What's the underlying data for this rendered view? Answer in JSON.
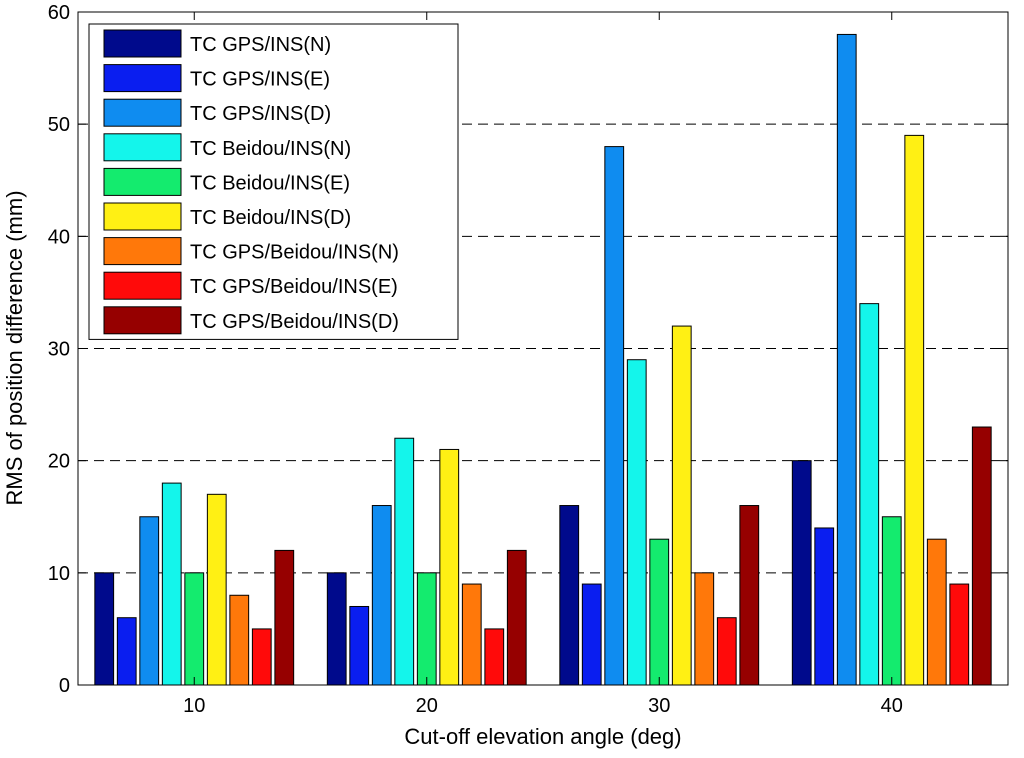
{
  "chart_data": {
    "type": "bar",
    "title": "",
    "xlabel": "Cut-off elevation angle (deg)",
    "ylabel": "RMS of position difference (mm)",
    "ylim": [
      0,
      60
    ],
    "yticks": [
      0,
      10,
      20,
      30,
      40,
      50,
      60
    ],
    "grid": "horizontal dashed",
    "legend_position": "top-left",
    "categories": [
      "10",
      "20",
      "30",
      "40"
    ],
    "series": [
      {
        "name": "TC GPS/INS(N)",
        "color": "#000a8c",
        "values": [
          10,
          10,
          16,
          20
        ]
      },
      {
        "name": "TC GPS/INS(E)",
        "color": "#0a1ef0",
        "values": [
          6,
          7,
          9,
          14
        ]
      },
      {
        "name": "TC GPS/INS(D)",
        "color": "#0f8cf0",
        "values": [
          15,
          16,
          48,
          58
        ]
      },
      {
        "name": "TC Beidou/INS(N)",
        "color": "#14f5eb",
        "values": [
          18,
          22,
          29,
          34
        ]
      },
      {
        "name": "TC Beidou/INS(E)",
        "color": "#14eb6e",
        "values": [
          10,
          10,
          13,
          15
        ]
      },
      {
        "name": "TC Beidou/INS(D)",
        "color": "#fff014",
        "values": [
          17,
          21,
          32,
          49
        ]
      },
      {
        "name": "TC GPS/Beidou/INS(N)",
        "color": "#ff780a",
        "values": [
          8,
          9,
          10,
          13
        ]
      },
      {
        "name": "TC GPS/Beidou/INS(E)",
        "color": "#ff0a0a",
        "values": [
          5,
          5,
          6,
          9
        ]
      },
      {
        "name": "TC GPS/Beidou/INS(D)",
        "color": "#960000",
        "values": [
          12,
          12,
          16,
          23
        ]
      }
    ]
  }
}
